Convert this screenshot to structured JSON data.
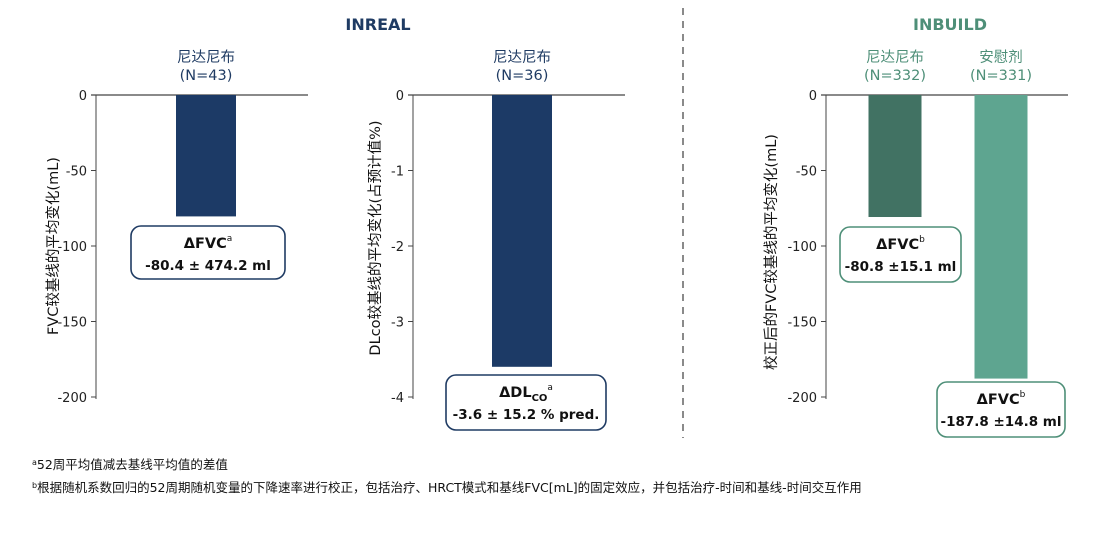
{
  "colors": {
    "inreal_title": "#1f3b63",
    "inbuild_title": "#4e8f78",
    "bar_navy": "#1c3a66",
    "bar_dark_green": "#417263",
    "bar_light_green": "#5ea590",
    "label_navy": "#1f3b63",
    "label_green": "#4e8f78",
    "axis": "#444444",
    "divider": "#8a8a8a"
  },
  "groups": {
    "inreal": {
      "title": "INREAL"
    },
    "inbuild": {
      "title": "INBUILD"
    }
  },
  "chart_data": [
    {
      "type": "bar",
      "group": "INREAL",
      "ylabel": "FVC较基线的平均变化(mL)",
      "ylim": [
        -200,
        0
      ],
      "yticks": [
        0,
        -50,
        -100,
        -150,
        -200
      ],
      "series": [
        {
          "header": [
            "尼达尼布",
            "(N=43)"
          ],
          "value": -80.4,
          "color": "#1c3a66",
          "header_color": "#1f3b63",
          "callout": {
            "line1": "ΔFVC",
            "sup": "a",
            "sub": "",
            "line2": "-80.4 ± 474.2 ml",
            "border": "#1f3b63"
          }
        }
      ]
    },
    {
      "type": "bar",
      "group": "INREAL",
      "ylabel": "DLco较基线的平均变化(占预计值%)",
      "ylim": [
        -4,
        0
      ],
      "yticks": [
        0,
        -1,
        -2,
        -3,
        -4
      ],
      "series": [
        {
          "header": [
            "尼达尼布",
            "(N=36)"
          ],
          "value": -3.6,
          "color": "#1c3a66",
          "header_color": "#1f3b63",
          "callout": {
            "line1": "ΔDL",
            "sub": "CO",
            "sup": "a",
            "line2": "-3.6 ± 15.2 % pred.",
            "border": "#1f3b63"
          }
        }
      ]
    },
    {
      "type": "bar",
      "group": "INBUILD",
      "ylabel": "校正后的FVC较基线的平均变化(mL)",
      "ylim": [
        -200,
        0
      ],
      "yticks": [
        0,
        -50,
        -100,
        -150,
        -200
      ],
      "series": [
        {
          "header": [
            "尼达尼布",
            "(N=332)"
          ],
          "value": -80.8,
          "color": "#417263",
          "header_color": "#4e8f78",
          "callout": {
            "line1": "ΔFVC",
            "sup": "b",
            "sub": "",
            "line2": "-80.8 ±15.1 ml",
            "border": "#4e8f78"
          }
        },
        {
          "header": [
            "安慰剂",
            "(N=331)"
          ],
          "value": -187.8,
          "color": "#5ea590",
          "header_color": "#4e8f78",
          "callout": {
            "line1": "ΔFVC",
            "sup": "b",
            "sub": "",
            "line2": "-187.8 ±14.8 ml",
            "border": "#4e8f78"
          }
        }
      ]
    }
  ],
  "footnotes": {
    "a_marker": "a",
    "a_text": "52周平均值减去基线平均值的差值",
    "b_marker": "b",
    "b_text": "根据随机系数回归的52周期随机变量的下降速率进行校正，包括治疗、HRCT模式和基线FVC[mL]的固定效应，并包括治疗-时间和基线-时间交互作用"
  }
}
